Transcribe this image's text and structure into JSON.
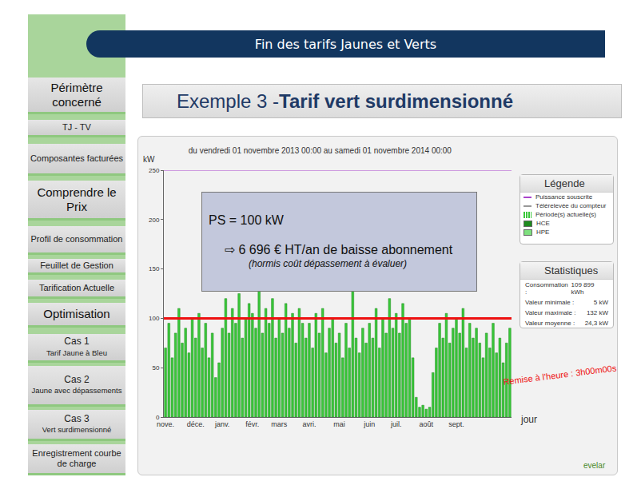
{
  "header": "Fin des tarifs Jaunes et Verts",
  "heading": {
    "prefix": "Exemple 3 - ",
    "bold": "Tarif vert surdimensionné"
  },
  "sidebar": [
    {
      "title": "Périmètre concerné",
      "kind": "section"
    },
    {
      "title": "TJ - TV",
      "kind": "item"
    },
    {
      "title": "Composantes facturées",
      "kind": "item"
    },
    {
      "title": "Comprendre le Prix",
      "kind": "section"
    },
    {
      "title": "Profil de consommation",
      "kind": "item"
    },
    {
      "title": "Feuillet de Gestion",
      "kind": "item"
    },
    {
      "title": "Tarification Actuelle",
      "kind": "item"
    },
    {
      "title": "Optimisation",
      "kind": "section"
    },
    {
      "title": "Cas 1",
      "subtitle": "Tarif Jaune à Bleu",
      "kind": "case"
    },
    {
      "title": "Cas 2",
      "subtitle": "Jaune avec dépassements",
      "kind": "case"
    },
    {
      "title": "Cas 3",
      "subtitle": "Vert surdimensionné",
      "kind": "case"
    },
    {
      "title": "Enregistrement courbe de charge",
      "kind": "item"
    }
  ],
  "callout": {
    "line1": "PS = 100 kW",
    "line2": "⇨ 6 696 € HT/an de baisse abonnement",
    "line3": "(hormis coût dépassement à évaluer)"
  },
  "legend_box": {
    "title": "Légende",
    "entries": [
      {
        "text": "Puissance souscrite",
        "color": "#aa44cc",
        "kind": "line"
      },
      {
        "text": "Télérelevée du compteur",
        "color": "#999999",
        "kind": "line"
      },
      {
        "text": "Période(s) actuelle(s)",
        "color": "#3ac83a",
        "kind": "bar"
      },
      {
        "text": "HCE",
        "color": "#1e8a1e",
        "kind": "square"
      },
      {
        "text": "HPE",
        "color": "#7fe07f",
        "kind": "square"
      }
    ]
  },
  "stats_box": {
    "title": "Statistiques",
    "rows": [
      {
        "label": "Consommation :",
        "value": "109 899 kWh"
      },
      {
        "label": "Valeur minimale :",
        "value": "5 kW"
      },
      {
        "label": "Valeur maximale :",
        "value": "132 kW"
      },
      {
        "label": "Valeur moyenne :",
        "value": "24,3 kW"
      }
    ]
  },
  "logo": "evelar",
  "chart_data": {
    "type": "bar",
    "title": "du vendredi 01 novembre 2013 00:00 au samedi 01 novembre 2014 00:00",
    "x_label": "jour",
    "y_label": "kW",
    "categories": [
      "nove.",
      null,
      null,
      null,
      null,
      null,
      null,
      null,
      null,
      "déce.",
      null,
      null,
      null,
      null,
      null,
      null,
      null,
      "janv.",
      null,
      null,
      null,
      null,
      null,
      null,
      null,
      null,
      "févr.",
      null,
      null,
      null,
      null,
      null,
      null,
      null,
      "mars",
      null,
      null,
      null,
      null,
      null,
      null,
      null,
      null,
      "avri.",
      null,
      null,
      null,
      null,
      null,
      null,
      null,
      null,
      "mai",
      null,
      null,
      null,
      null,
      null,
      null,
      null,
      null,
      "juin",
      null,
      null,
      null,
      null,
      null,
      null,
      null,
      "juil.",
      null,
      null,
      null,
      null,
      null,
      null,
      null,
      null,
      "août",
      null,
      null,
      null,
      null,
      null,
      null,
      null,
      null,
      "sept.",
      null,
      null,
      null,
      null,
      null,
      null,
      null,
      null,
      null,
      null,
      null,
      null,
      null,
      null,
      null,
      null
    ],
    "values": [
      70,
      95,
      60,
      85,
      110,
      75,
      90,
      65,
      100,
      80,
      105,
      70,
      95,
      60,
      85,
      40,
      55,
      90,
      120,
      85,
      110,
      95,
      125,
      80,
      100,
      115,
      105,
      90,
      130,
      85,
      110,
      95,
      120,
      80,
      100,
      85,
      115,
      90,
      105,
      75,
      110,
      95,
      80,
      95,
      70,
      105,
      85,
      110,
      65,
      90,
      100,
      75,
      85,
      60,
      95,
      70,
      132,
      80,
      65,
      90,
      75,
      95,
      80,
      110,
      70,
      100,
      85,
      120,
      90,
      105,
      85,
      115,
      95,
      100,
      60,
      20,
      10,
      12,
      8,
      10,
      45,
      70,
      95,
      80,
      105,
      75,
      90,
      100,
      85,
      110,
      70,
      95,
      80,
      90,
      75,
      60,
      85,
      70,
      95,
      65,
      80,
      55,
      75,
      90
    ],
    "color": "#3ac83a",
    "ylim": [
      0,
      250
    ],
    "yticks": [
      0,
      50,
      100,
      150,
      200,
      250
    ],
    "grid": false,
    "reference_lines": [
      {
        "value": 100,
        "color": "#ee1111"
      },
      {
        "value": 250,
        "color": "#aa44cc"
      }
    ],
    "annotations": [
      {
        "text": "Remise à l'heure : 3h00m00s",
        "color": "#ee1111"
      }
    ]
  }
}
